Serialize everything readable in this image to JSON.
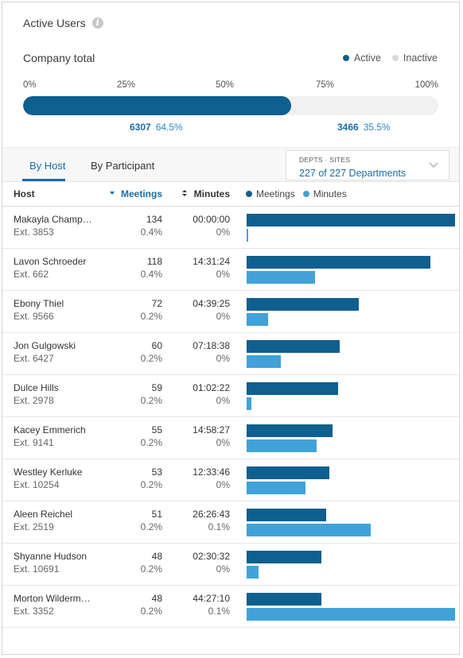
{
  "header": {
    "title": "Active Users",
    "info_icon": "info-icon",
    "company_total_label": "Company total",
    "legend": [
      {
        "label": "Active",
        "color": "#0f5f8f"
      },
      {
        "label": "Inactive",
        "color": "#d8d8d8"
      }
    ]
  },
  "progress": {
    "ticks": [
      "0%",
      "25%",
      "50%",
      "75%",
      "100%"
    ],
    "active_fraction": 0.645,
    "active": {
      "count": "6307",
      "percent": "64.5%"
    },
    "inactive": {
      "count": "3466",
      "percent": "35.5%"
    }
  },
  "tabs": [
    {
      "label": "By Host",
      "active": true
    },
    {
      "label": "By Participant",
      "active": false
    }
  ],
  "dept_filter": {
    "label": "DEPTS · SITES",
    "value": "227 of 227 Departments",
    "icon": "chevron-down-icon"
  },
  "table": {
    "headers": {
      "host": "Host",
      "meetings": "Meetings",
      "minutes": "Minutes",
      "legend_meetings": "Meetings",
      "legend_minutes": "Minutes"
    },
    "colors": {
      "meetings": "#0f5f8f",
      "minutes": "#41a2d9"
    },
    "bar_scale": {
      "meetings_max": 134,
      "minutes_max": "44:27:10"
    },
    "rows": [
      {
        "name": "Makayla Champ…",
        "ext": "Ext. 3853",
        "meetings": "134",
        "meetings_pct": "0.4%",
        "minutes": "00:00:00",
        "minutes_pct": "0%",
        "meetings_value": 134,
        "minutes_value": 0
      },
      {
        "name": "Lavon Schroeder",
        "ext": "Ext. 662",
        "meetings": "118",
        "meetings_pct": "0.4%",
        "minutes": "14:31:24",
        "minutes_pct": "0%",
        "meetings_value": 118,
        "minutes_value": 871.4
      },
      {
        "name": "Ebony Thiel",
        "ext": "Ext. 9566",
        "meetings": "72",
        "meetings_pct": "0.2%",
        "minutes": "04:39:25",
        "minutes_pct": "0%",
        "meetings_value": 72,
        "minutes_value": 279.4
      },
      {
        "name": "Jon Gulgowski",
        "ext": "Ext. 6427",
        "meetings": "60",
        "meetings_pct": "0.2%",
        "minutes": "07:18:38",
        "minutes_pct": "0%",
        "meetings_value": 60,
        "minutes_value": 438.6
      },
      {
        "name": "Dulce Hills",
        "ext": "Ext. 2978",
        "meetings": "59",
        "meetings_pct": "0.2%",
        "minutes": "01:02:22",
        "minutes_pct": "0%",
        "meetings_value": 59,
        "minutes_value": 62.4
      },
      {
        "name": "Kacey Emmerich",
        "ext": "Ext. 9141",
        "meetings": "55",
        "meetings_pct": "0.2%",
        "minutes": "14:58:27",
        "minutes_pct": "0%",
        "meetings_value": 55,
        "minutes_value": 898.5
      },
      {
        "name": "Westley Kerluke",
        "ext": "Ext. 10254",
        "meetings": "53",
        "meetings_pct": "0.2%",
        "minutes": "12:33:46",
        "minutes_pct": "0%",
        "meetings_value": 53,
        "minutes_value": 753.8
      },
      {
        "name": "Aleen Reichel",
        "ext": "Ext. 2519",
        "meetings": "51",
        "meetings_pct": "0.2%",
        "minutes": "26:26:43",
        "minutes_pct": "0.1%",
        "meetings_value": 51,
        "minutes_value": 1586.7
      },
      {
        "name": "Shyanne Hudson",
        "ext": "Ext. 10691",
        "meetings": "48",
        "meetings_pct": "0.2%",
        "minutes": "02:30:32",
        "minutes_pct": "0%",
        "meetings_value": 48,
        "minutes_value": 150.5
      },
      {
        "name": "Morton Wilderm…",
        "ext": "Ext. 3352",
        "meetings": "48",
        "meetings_pct": "0.2%",
        "minutes": "44:27:10",
        "minutes_pct": "0.1%",
        "meetings_value": 48,
        "minutes_value": 2667.2
      }
    ]
  }
}
